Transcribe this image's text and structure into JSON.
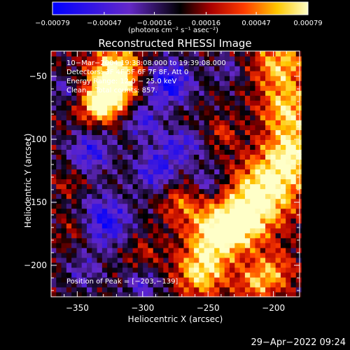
{
  "chart_data": {
    "type": "heatmap",
    "title": "Reconstructed RHESSI Image",
    "xlabel": "Heliocentric X (arcsec)",
    "ylabel": "Heliocentric Y (arcsec)",
    "xlim": [
      -370,
      -180
    ],
    "ylim": [
      -225,
      -30
    ],
    "x_ticks": [
      {
        "value": -350,
        "label": "−350"
      },
      {
        "value": -300,
        "label": "−300"
      },
      {
        "value": -250,
        "label": "−250"
      },
      {
        "value": -200,
        "label": "−200"
      }
    ],
    "y_ticks": [
      {
        "value": -50,
        "label": "−50"
      },
      {
        "value": -100,
        "label": "−100"
      },
      {
        "value": -150,
        "label": "−150"
      },
      {
        "value": -200,
        "label": "−200"
      }
    ],
    "colorbar": {
      "range": [
        -0.00079,
        0.00079
      ],
      "tick_values": [
        -0.00079,
        -0.00047,
        -0.00016,
        0.00016,
        0.00047,
        0.00079
      ],
      "tick_labels": [
        "−0.00079",
        "−0.00047",
        "−0.00016",
        "0.00016",
        "0.00047",
        "0.00079"
      ],
      "units": "(photons cm⁻² s⁻¹ asec⁻²)"
    },
    "peak": {
      "x": -203,
      "y": -139
    },
    "colors": {
      "negative": "#0000ff",
      "background": "#000000",
      "positive_peak": "#ffff80"
    }
  },
  "overlay": {
    "time_range": "10−Mar−2004 19:38:08.000 to 19:39:08.000",
    "detectors": "Detectors: 3F 4F 5F 6F 7F 8F, Att 0",
    "energy": "Energy Range: 12.0 − 25.0 keV",
    "method": "Clean    Total counts: 857.",
    "peak_label": "Position of Peak = [−203,−139]"
  },
  "footer": {
    "timestamp": "29−Apr−2022 09:24"
  }
}
